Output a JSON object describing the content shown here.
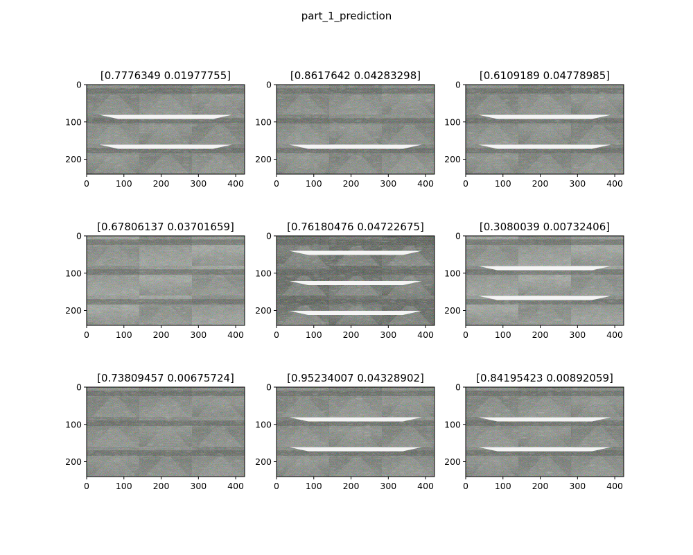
{
  "figure": {
    "title": "part_1_prediction"
  },
  "axes": {
    "x_ticks": [
      "0",
      "100",
      "200",
      "300",
      "400"
    ],
    "x_tick_values": [
      0,
      100,
      200,
      300,
      400
    ],
    "y_ticks": [
      "0",
      "100",
      "200"
    ],
    "y_tick_values": [
      0,
      100,
      200
    ],
    "image_width": 424,
    "image_height": 240
  },
  "panels": [
    {
      "title": "[0.7776349  0.01977755]",
      "tone": "grey",
      "white_bands": [
        81,
        161
      ]
    },
    {
      "title": "[0.8617642  0.04283298]",
      "tone": "grey",
      "white_bands": [
        161
      ]
    },
    {
      "title": "[0.6109189  0.04778985]",
      "tone": "grey",
      "white_bands": [
        81,
        161
      ]
    },
    {
      "title": "[0.67806137 0.03701659]",
      "tone": "light",
      "white_bands": []
    },
    {
      "title": "[0.76180476 0.04722675]",
      "tone": "dark",
      "white_bands": [
        40,
        121,
        201
      ]
    },
    {
      "title": "[0.3080039  0.00732406]",
      "tone": "light",
      "white_bands": [
        81,
        161
      ]
    },
    {
      "title": "[0.73809457 0.00675724]",
      "tone": "grey",
      "white_bands": []
    },
    {
      "title": "[0.95234007 0.04328902]",
      "tone": "grey",
      "white_bands": [
        81,
        161
      ]
    },
    {
      "title": "[0.84195423 0.00892059]",
      "tone": "grey",
      "white_bands": [
        81,
        161
      ]
    }
  ]
}
